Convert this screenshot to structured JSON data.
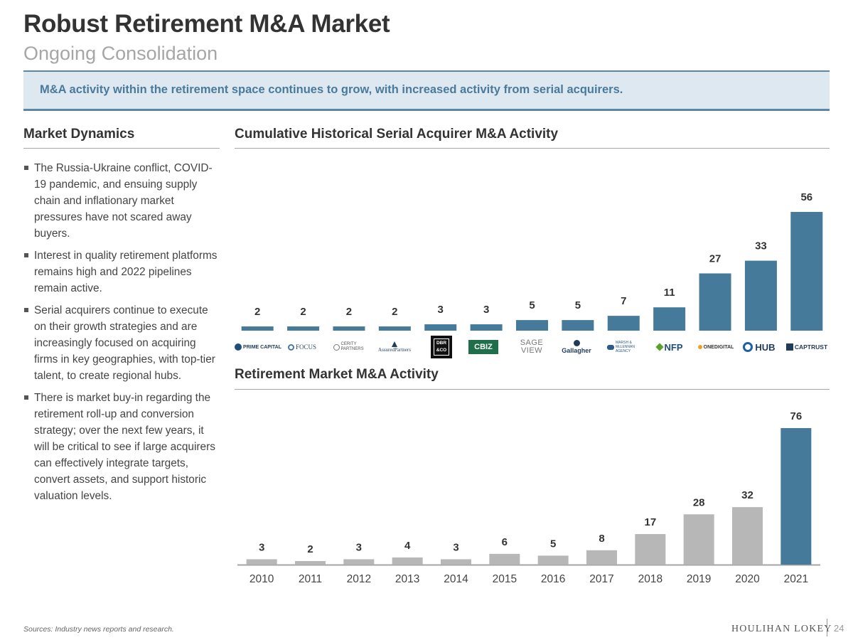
{
  "header": {
    "title": "Robust Retirement M&A Market",
    "subtitle": "Ongoing Consolidation"
  },
  "banner": {
    "text": "M&A activity within the retirement space continues to grow, with increased activity from serial acquirers."
  },
  "market_dynamics": {
    "title": "Market Dynamics",
    "bullets": [
      "The Russia-Ukraine conflict, COVID-19 pandemic, and ensuing supply chain and inflationary market pressures have not scared away buyers.",
      "Interest in quality retirement platforms remains high and 2022 pipelines remain active.",
      "Serial acquirers continue to execute on their growth strategies and are increasingly focused on acquiring firms in key geographies, with top-tier talent, to create regional hubs.",
      "There is market buy-in regarding the retirement roll-up and conversion strategy; over the next few years, it will be critical to see if large acquirers can effectively integrate targets, convert assets, and support historic valuation levels."
    ]
  },
  "colors": {
    "primary": "#457a9a",
    "gray_bar": "#b7b7b7",
    "banner_bg": "#dee8f1",
    "banner_text": "#4a7a9b"
  },
  "logos": [
    {
      "name": "prime-capital",
      "text": "PRIME CAPITAL"
    },
    {
      "name": "focus",
      "text": "FOCUS"
    },
    {
      "name": "cerity-partners",
      "text": "CERITY PARTNERS"
    },
    {
      "name": "assured-partners",
      "text": "AssuredPartners"
    },
    {
      "name": "dbr-co",
      "text": "DBR &CO"
    },
    {
      "name": "cbiz",
      "text": "CBIZ"
    },
    {
      "name": "sageview",
      "text": "SAGE VIEW"
    },
    {
      "name": "gallagher",
      "text": "Gallagher"
    },
    {
      "name": "marsh-mclennan",
      "text": "MARSH & McLENNAN AGENCY"
    },
    {
      "name": "nfp",
      "text": "NFP"
    },
    {
      "name": "onedigital",
      "text": "ONEDIGITAL"
    },
    {
      "name": "hub",
      "text": "HUB"
    },
    {
      "name": "captrust",
      "text": "CAPTRUST"
    }
  ],
  "chart_data": [
    {
      "type": "bar",
      "title": "Cumulative Historical Serial Acquirer M&A Activity",
      "categories": [
        "Prime Capital",
        "Focus",
        "Cerity Partners",
        "Assured Partners",
        "DBR & Co",
        "CBIZ",
        "SageView",
        "Gallagher",
        "Marsh & McLennan Agency",
        "NFP",
        "OneDigital",
        "HUB",
        "CAPTRUST"
      ],
      "values": [
        2,
        2,
        2,
        2,
        3,
        3,
        5,
        5,
        7,
        11,
        27,
        33,
        56
      ],
      "labels": [
        "2",
        "2",
        "2",
        "2",
        "3",
        "3",
        "5",
        "5",
        "7",
        "11",
        "27",
        "33",
        "56"
      ],
      "ylim": [
        0,
        56
      ]
    },
    {
      "type": "bar",
      "title": "Retirement Market M&A Activity",
      "categories": [
        "2010",
        "2011",
        "2012",
        "2013",
        "2014",
        "2015",
        "2016",
        "2017",
        "2018",
        "2019",
        "2020",
        "2021"
      ],
      "values": [
        3,
        2,
        3,
        4,
        3,
        6,
        5,
        8,
        17,
        28,
        32,
        76
      ],
      "labels": [
        "3",
        "2",
        "3",
        "4",
        "3",
        "6",
        "5",
        "8",
        "17",
        "28",
        "32",
        "76"
      ],
      "highlight": [
        "2021"
      ],
      "ylim": [
        0,
        76
      ]
    }
  ],
  "footer": {
    "sources": "Sources: Industry news reports and research.",
    "brand": "HOULIHAN LOKEY",
    "page": "24"
  }
}
